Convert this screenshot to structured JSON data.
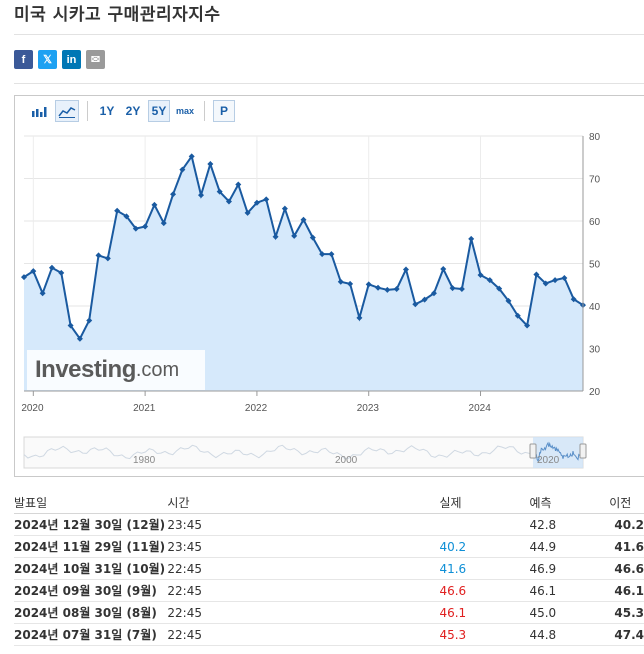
{
  "title": "미국 시카고 구매관리자지수",
  "share": {
    "facebook": "f",
    "twitter": "𝕏",
    "linkedin": "in",
    "email": "✉"
  },
  "toolbar": {
    "ranges": [
      "1Y",
      "2Y",
      "5Y",
      "max"
    ],
    "active_range": "5Y",
    "p_label": "P"
  },
  "chart_data": {
    "type": "area",
    "yaxis_position": "right",
    "ylim": [
      20,
      80
    ],
    "yticks": [
      20,
      30,
      40,
      50,
      60,
      70,
      80
    ],
    "xtick_labels": [
      "2020",
      "2021",
      "2022",
      "2023",
      "2024"
    ],
    "grid": true,
    "x": [
      "2019-12",
      "2020-01",
      "2020-02",
      "2020-03",
      "2020-04",
      "2020-05",
      "2020-06",
      "2020-07",
      "2020-08",
      "2020-09",
      "2020-10",
      "2020-11",
      "2020-12",
      "2021-01",
      "2021-02",
      "2021-03",
      "2021-04",
      "2021-05",
      "2021-06",
      "2021-07",
      "2021-08",
      "2021-09",
      "2021-10",
      "2021-11",
      "2021-12",
      "2022-01",
      "2022-02",
      "2022-03",
      "2022-04",
      "2022-05",
      "2022-06",
      "2022-07",
      "2022-08",
      "2022-09",
      "2022-10",
      "2022-11",
      "2022-12",
      "2023-01",
      "2023-02",
      "2023-03",
      "2023-04",
      "2023-05",
      "2023-06",
      "2023-07",
      "2023-08",
      "2023-09",
      "2023-10",
      "2023-11",
      "2023-12",
      "2024-01",
      "2024-02",
      "2024-03",
      "2024-04",
      "2024-05",
      "2024-06",
      "2024-07",
      "2024-08",
      "2024-09",
      "2024-10",
      "2024-11",
      "2024-12"
    ],
    "values": [
      46.8,
      48.2,
      43.0,
      49.0,
      47.8,
      35.4,
      32.3,
      36.6,
      51.9,
      51.2,
      62.4,
      61.1,
      58.2,
      58.7,
      63.8,
      59.5,
      66.3,
      72.1,
      75.2,
      66.1,
      73.4,
      66.9,
      64.6,
      68.6,
      61.9,
      64.3,
      65.1,
      56.3,
      62.9,
      56.5,
      60.3,
      56.1,
      52.2,
      52.2,
      45.7,
      45.2,
      37.2,
      45.1,
      44.3,
      43.8,
      44.0,
      48.6,
      40.4,
      41.5,
      43.0,
      48.7,
      44.2,
      44.0,
      55.8,
      47.3,
      46.1,
      44.1,
      41.2,
      37.7,
      35.4,
      47.4,
      45.3,
      46.1,
      46.6,
      41.6,
      40.2
    ],
    "navigator": {
      "labels": [
        "1980",
        "2000",
        "2020"
      ]
    }
  },
  "watermark": {
    "brand": "Investing",
    "suffix": ".com"
  },
  "table": {
    "headers": {
      "date": "발표일",
      "time": "시간",
      "actual": "실제",
      "forecast": "예측",
      "previous": "이전"
    },
    "rows": [
      {
        "date": "2024년 12월 30일 (12월)",
        "time": "23:45",
        "actual": "",
        "actual_class": "",
        "forecast": "42.8",
        "previous": "40.2"
      },
      {
        "date": "2024년 11월 29일 (11월)",
        "time": "23:45",
        "actual": "40.2",
        "actual_class": "pos",
        "forecast": "44.9",
        "previous": "41.6"
      },
      {
        "date": "2024년 10월 31일 (10월)",
        "time": "22:45",
        "actual": "41.6",
        "actual_class": "pos",
        "forecast": "46.9",
        "previous": "46.6"
      },
      {
        "date": "2024년 09월 30일 (9월)",
        "time": "22:45",
        "actual": "46.6",
        "actual_class": "neg",
        "forecast": "46.1",
        "previous": "46.1"
      },
      {
        "date": "2024년 08월 30일 (8월)",
        "time": "22:45",
        "actual": "46.1",
        "actual_class": "neg",
        "forecast": "45.0",
        "previous": "45.3"
      },
      {
        "date": "2024년 07월 31일 (7월)",
        "time": "22:45",
        "actual": "45.3",
        "actual_class": "neg",
        "forecast": "44.8",
        "previous": "47.4"
      }
    ]
  }
}
